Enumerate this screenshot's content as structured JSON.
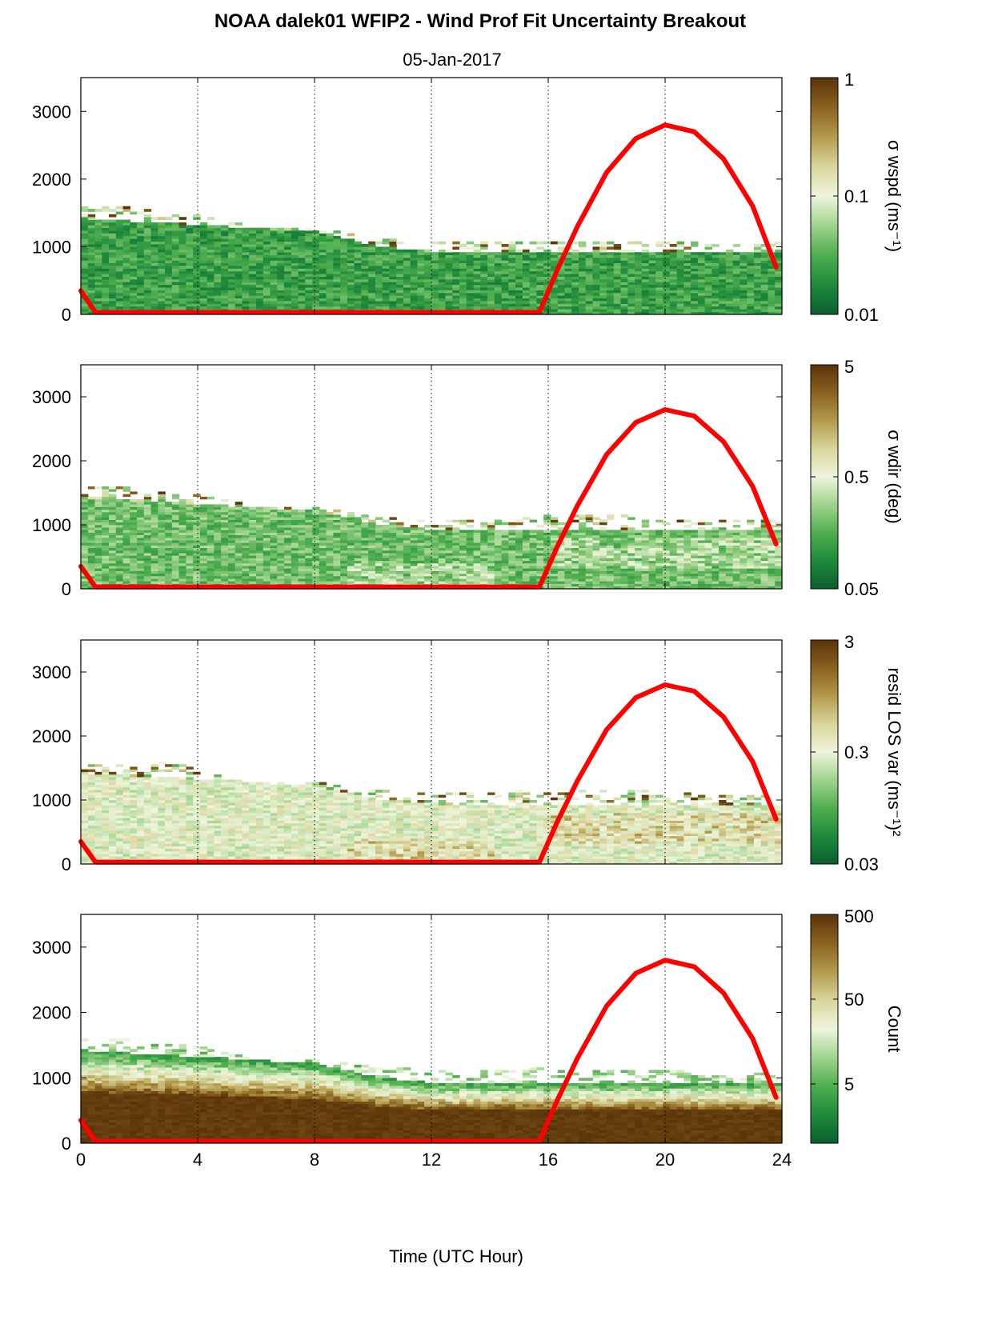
{
  "figure": {
    "title": "NOAA dalek01 WFIP2 - Wind Prof Fit Uncertainty Breakout",
    "subtitle": "05-Jan-2017",
    "xlabel": "Time (UTC Hour)"
  },
  "colors": {
    "sun_curve": "#ff0000",
    "colormap": [
      "#0b5e2e",
      "#1f8a3c",
      "#4fae4f",
      "#9fd38c",
      "#eef5dc",
      "#d9d59c",
      "#b39a4c",
      "#8a6220",
      "#5a3309"
    ],
    "grid": "#000000"
  },
  "chart_data": [
    {
      "type": "heatmap",
      "name": "wspd",
      "colorbar_label": "σ wspd (ms⁻¹)",
      "colorbar_scale": "log",
      "colorbar_range": [
        0.01,
        1
      ],
      "colorbar_ticks": [
        "1",
        "0.1",
        "0.01"
      ],
      "x_range": [
        0,
        24
      ],
      "y_range": [
        0,
        3500
      ],
      "x_ticks": [
        "0",
        "4",
        "8",
        "12",
        "16",
        "20",
        "24"
      ],
      "y_ticks": [
        "0",
        "1000",
        "2000",
        "3000"
      ],
      "data_top": [
        [
          0,
          1600
        ],
        [
          2,
          1550
        ],
        [
          4,
          1450
        ],
        [
          6,
          1250
        ],
        [
          8,
          1250
        ],
        [
          10,
          1100
        ],
        [
          12,
          1050
        ],
        [
          14,
          1050
        ],
        [
          16,
          1050
        ],
        [
          18,
          1050
        ],
        [
          20,
          1050
        ],
        [
          22,
          1050
        ],
        [
          24,
          1050
        ]
      ],
      "solid_top": [
        [
          0,
          1400
        ],
        [
          4,
          1300
        ],
        [
          8,
          1200
        ],
        [
          10,
          1000
        ],
        [
          12,
          900
        ],
        [
          16,
          900
        ],
        [
          20,
          900
        ],
        [
          24,
          900
        ]
      ],
      "base_level": 0.025,
      "sun_curve": [
        [
          0,
          350
        ],
        [
          0.5,
          30
        ],
        [
          15.7,
          30
        ],
        [
          16.3,
          650
        ],
        [
          17,
          1300
        ],
        [
          18,
          2100
        ],
        [
          19,
          2600
        ],
        [
          20,
          2800
        ],
        [
          21,
          2700
        ],
        [
          22,
          2300
        ],
        [
          23,
          1600
        ],
        [
          23.8,
          700
        ]
      ]
    },
    {
      "type": "heatmap",
      "name": "wdir",
      "colorbar_label": "σ wdir (deg)",
      "colorbar_scale": "log",
      "colorbar_range": [
        0.05,
        5
      ],
      "colorbar_ticks": [
        "5",
        "0.5",
        "0.05"
      ],
      "x_range": [
        0,
        24
      ],
      "y_range": [
        0,
        3500
      ],
      "x_ticks": [
        "0",
        "4",
        "8",
        "12",
        "16",
        "20",
        "24"
      ],
      "y_ticks": [
        "0",
        "1000",
        "2000",
        "3000"
      ],
      "data_top": [
        [
          0,
          1600
        ],
        [
          2,
          1550
        ],
        [
          4,
          1450
        ],
        [
          6,
          1250
        ],
        [
          8,
          1250
        ],
        [
          10,
          1100
        ],
        [
          12,
          1050
        ],
        [
          14,
          1050
        ],
        [
          16,
          1150
        ],
        [
          18,
          1150
        ],
        [
          20,
          1050
        ],
        [
          22,
          1050
        ],
        [
          24,
          1050
        ]
      ],
      "solid_top": [
        [
          0,
          1400
        ],
        [
          4,
          1300
        ],
        [
          8,
          1200
        ],
        [
          10,
          1000
        ],
        [
          12,
          900
        ],
        [
          16,
          900
        ],
        [
          20,
          900
        ],
        [
          24,
          900
        ]
      ],
      "base_level": 0.2,
      "sun_curve": [
        [
          0,
          350
        ],
        [
          0.5,
          30
        ],
        [
          15.7,
          30
        ],
        [
          16.3,
          650
        ],
        [
          17,
          1300
        ],
        [
          18,
          2100
        ],
        [
          19,
          2600
        ],
        [
          20,
          2800
        ],
        [
          21,
          2700
        ],
        [
          22,
          2300
        ],
        [
          23,
          1600
        ],
        [
          23.8,
          700
        ]
      ]
    },
    {
      "type": "heatmap",
      "name": "resid",
      "colorbar_label": "resid LOS var (ms⁻¹)²",
      "colorbar_scale": "log",
      "colorbar_range": [
        0.03,
        3
      ],
      "colorbar_ticks": [
        "3",
        "0.3",
        "0.03"
      ],
      "x_range": [
        0,
        24
      ],
      "y_range": [
        0,
        3500
      ],
      "x_ticks": [
        "0",
        "4",
        "8",
        "12",
        "16",
        "20",
        "24"
      ],
      "y_ticks": [
        "0",
        "1000",
        "2000",
        "3000"
      ],
      "data_top": [
        [
          0,
          1600
        ],
        [
          2,
          1600
        ],
        [
          4,
          1500
        ],
        [
          6,
          1250
        ],
        [
          8,
          1250
        ],
        [
          10,
          1150
        ],
        [
          12,
          1100
        ],
        [
          14,
          1100
        ],
        [
          16,
          1150
        ],
        [
          18,
          1150
        ],
        [
          20,
          1100
        ],
        [
          22,
          1050
        ],
        [
          24,
          1050
        ]
      ],
      "solid_top": [
        [
          0,
          1400
        ],
        [
          4,
          1300
        ],
        [
          8,
          1200
        ],
        [
          10,
          1000
        ],
        [
          12,
          900
        ],
        [
          16,
          900
        ],
        [
          20,
          900
        ],
        [
          24,
          900
        ]
      ],
      "base_level": 0.3,
      "sun_curve": [
        [
          0,
          350
        ],
        [
          0.5,
          30
        ],
        [
          15.7,
          30
        ],
        [
          16.3,
          650
        ],
        [
          17,
          1300
        ],
        [
          18,
          2100
        ],
        [
          19,
          2600
        ],
        [
          20,
          2800
        ],
        [
          21,
          2700
        ],
        [
          22,
          2300
        ],
        [
          23,
          1600
        ],
        [
          23.8,
          700
        ]
      ]
    },
    {
      "type": "heatmap",
      "name": "count",
      "colorbar_label": "Count",
      "colorbar_scale": "log",
      "colorbar_range": [
        1,
        500
      ],
      "colorbar_ticks": [
        "500",
        "50",
        "5"
      ],
      "x_range": [
        0,
        24
      ],
      "y_range": [
        0,
        3500
      ],
      "x_ticks": [
        "0",
        "4",
        "8",
        "12",
        "16",
        "20",
        "24"
      ],
      "y_ticks": [
        "0",
        "1000",
        "2000",
        "3000"
      ],
      "data_top": [
        [
          0,
          1600
        ],
        [
          2,
          1550
        ],
        [
          4,
          1450
        ],
        [
          6,
          1250
        ],
        [
          8,
          1250
        ],
        [
          10,
          1150
        ],
        [
          12,
          1100
        ],
        [
          14,
          1100
        ],
        [
          16,
          1150
        ],
        [
          18,
          1100
        ],
        [
          20,
          1100
        ],
        [
          22,
          1050
        ],
        [
          24,
          1050
        ]
      ],
      "solid_top": [
        [
          0,
          1400
        ],
        [
          4,
          1300
        ],
        [
          8,
          1200
        ],
        [
          10,
          1000
        ],
        [
          12,
          900
        ],
        [
          16,
          900
        ],
        [
          20,
          900
        ],
        [
          24,
          900
        ]
      ],
      "base_level": 500,
      "sun_curve": [
        [
          0,
          350
        ],
        [
          0.5,
          30
        ],
        [
          15.7,
          30
        ],
        [
          16.3,
          650
        ],
        [
          17,
          1300
        ],
        [
          18,
          2100
        ],
        [
          19,
          2600
        ],
        [
          20,
          2800
        ],
        [
          21,
          2700
        ],
        [
          22,
          2300
        ],
        [
          23,
          1600
        ],
        [
          23.8,
          700
        ]
      ]
    }
  ]
}
